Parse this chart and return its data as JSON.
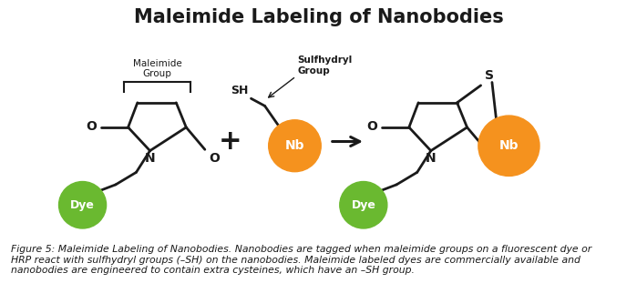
{
  "title": "Maleimide Labeling of Nanobodies",
  "title_fontsize": 15,
  "title_fontweight": "bold",
  "bg_color": "#ffffff",
  "green_color": "#6ab930",
  "orange_color": "#f5921e",
  "black_color": "#1a1a1a",
  "dye_label": "Dye",
  "nb_label": "Nb",
  "maleimide_bracket_label": "Maleimide\nGroup",
  "sulfhydryl_label": "Sulfhydryl\nGroup",
  "caption": "Figure 5: Maleimide Labeling of Nanobodies. Nanobodies are tagged when maleimide groups on a fluorescent dye or\nHRP react with sulfhydryl groups (–SH) on the nanobodies. Maleimide labeled dyes are commercially available and\nnanobodies are engineered to contain extra cysteines, which have an –SH group.",
  "caption_fontsize": 7.8,
  "lw": 2.0,
  "circle_r": 0.38,
  "nb_r": 0.42,
  "xlim": [
    0,
    10
  ],
  "ylim": [
    -0.5,
    4.0
  ]
}
